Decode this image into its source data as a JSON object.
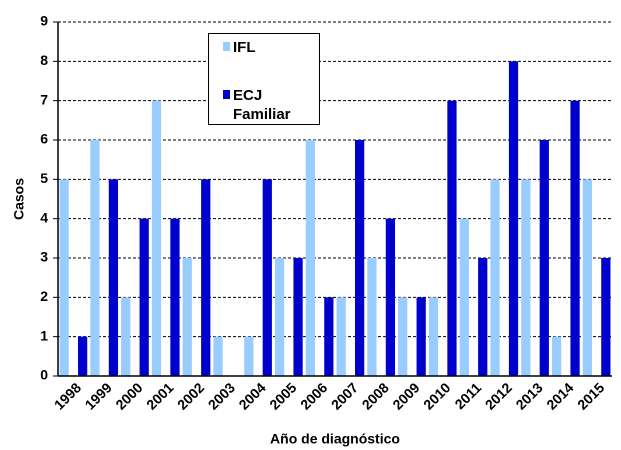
{
  "chart_data": {
    "type": "bar",
    "x_label": "Año de diagnóstico",
    "y_label": "Casos",
    "categories": [
      "1998",
      "1999",
      "2000",
      "2001",
      "2002",
      "2003",
      "2004",
      "2005",
      "2006",
      "2007",
      "2008",
      "2009",
      "2010",
      "2011",
      "2012",
      "2013",
      "2014",
      "2015"
    ],
    "series": [
      {
        "name": "IFL",
        "color": "#99ccff",
        "values": [
          5,
          6,
          2,
          7,
          3,
          1,
          1,
          3,
          6,
          2,
          3,
          2,
          2,
          4,
          5,
          5,
          1,
          5
        ]
      },
      {
        "name": "ECJ Familiar",
        "color": "#0000cc",
        "values": [
          1,
          5,
          4,
          4,
          5,
          0,
          5,
          3,
          2,
          6,
          4,
          2,
          7,
          3,
          8,
          6,
          7,
          3
        ]
      }
    ],
    "ylim": [
      0,
      9
    ],
    "yticks": [
      0,
      1,
      2,
      3,
      4,
      5,
      6,
      7,
      8,
      9
    ],
    "grid": true
  }
}
